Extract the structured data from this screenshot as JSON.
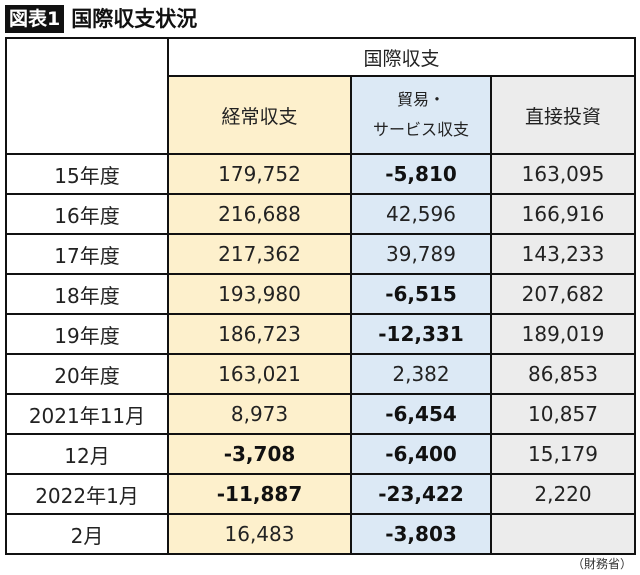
{
  "figure": {
    "label": "図表1",
    "title": "国際収支状況",
    "source": "（財務省）"
  },
  "table": {
    "group_header": "国際収支",
    "columns": [
      {
        "label": "経常収支",
        "color": "#fdf0cc"
      },
      {
        "label_line1": "貿易・",
        "label_line2": "サービス収支",
        "color": "#dce9f5"
      },
      {
        "label": "直接投資",
        "color": "#ececec"
      }
    ],
    "rows": [
      {
        "period": "15年度",
        "current_account": "179,752",
        "trade_services": "-5,810",
        "fdi": "163,095"
      },
      {
        "period": "16年度",
        "current_account": "216,688",
        "trade_services": "42,596",
        "fdi": "166,916"
      },
      {
        "period": "17年度",
        "current_account": "217,362",
        "trade_services": "39,789",
        "fdi": "143,233"
      },
      {
        "period": "18年度",
        "current_account": "193,980",
        "trade_services": "-6,515",
        "fdi": "207,682"
      },
      {
        "period": "19年度",
        "current_account": "186,723",
        "trade_services": "-12,331",
        "fdi": "189,019"
      },
      {
        "period": "20年度",
        "current_account": "163,021",
        "trade_services": "2,382",
        "fdi": "86,853"
      },
      {
        "period": "2021年11月",
        "current_account": "8,973",
        "trade_services": "-6,454",
        "fdi": "10,857"
      },
      {
        "period": "12月",
        "current_account": "-3,708",
        "trade_services": "-6,400",
        "fdi": "15,179"
      },
      {
        "period": "2022年1月",
        "current_account": "-11,887",
        "trade_services": "-23,422",
        "fdi": "2,220"
      },
      {
        "period": "2月",
        "current_account": "16,483",
        "trade_services": "-3,803",
        "fdi": ""
      }
    ]
  }
}
